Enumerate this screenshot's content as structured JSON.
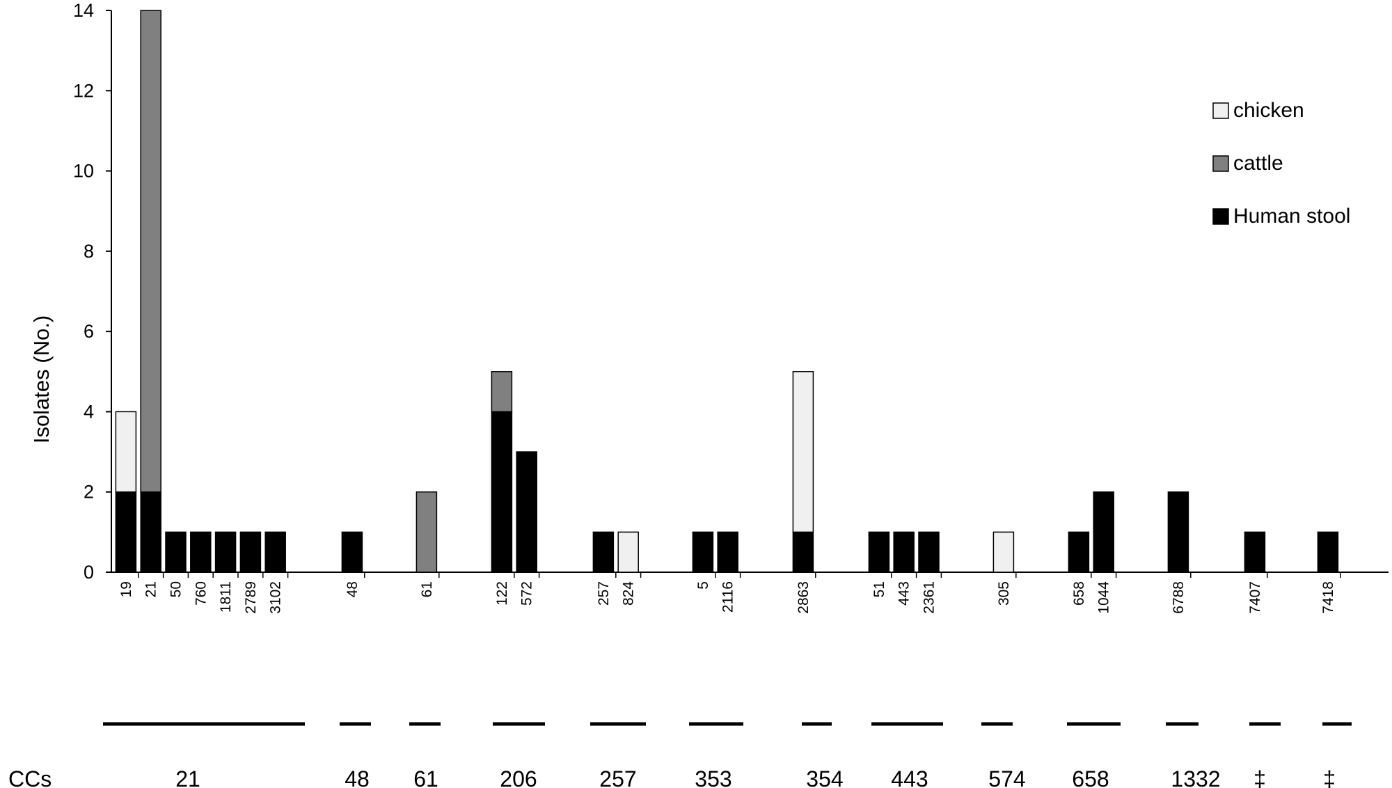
{
  "chart_data": {
    "type": "bar",
    "stacked": true,
    "title": "",
    "ylabel": "Isolates (No.)",
    "ylim": [
      0,
      14
    ],
    "yticks": [
      "0",
      "2",
      "4",
      "6",
      "8",
      "10",
      "12",
      "14"
    ],
    "categories": [
      "19",
      "21",
      "50",
      "760",
      "1811",
      "2789",
      "3102",
      "48",
      "61",
      "122",
      "572",
      "257",
      "824",
      "5",
      "2116",
      "2863",
      "51",
      "443",
      "2361",
      "305",
      "658",
      "1044",
      "6788",
      "7407",
      "7418"
    ],
    "series": [
      {
        "name": "Human stool",
        "color": "#000000",
        "values": [
          2,
          2,
          1,
          1,
          1,
          1,
          1,
          1,
          0,
          4,
          3,
          1,
          0,
          1,
          1,
          1,
          1,
          1,
          1,
          0,
          1,
          2,
          2,
          1,
          1
        ]
      },
      {
        "name": "cattle",
        "color": "#808080",
        "values": [
          0,
          12,
          0,
          0,
          0,
          0,
          0,
          0,
          2,
          1,
          0,
          0,
          0,
          0,
          0,
          0,
          0,
          0,
          0,
          0,
          0,
          0,
          0,
          0,
          0
        ]
      },
      {
        "name": "chicken",
        "color": "#f0f0f0",
        "values": [
          2,
          0,
          0,
          0,
          0,
          0,
          0,
          0,
          0,
          0,
          0,
          0,
          1,
          0,
          0,
          4,
          0,
          0,
          0,
          1,
          0,
          0,
          0,
          0,
          0
        ]
      }
    ],
    "legend": [
      "chicken",
      "cattle",
      "Human stool"
    ],
    "legend_position": "top-right",
    "group_label_title": "CCs",
    "groups": [
      {
        "label": "21",
        "members": 7
      },
      {
        "label": "48",
        "members": 1
      },
      {
        "label": "61",
        "members": 1
      },
      {
        "label": "206",
        "members": 2
      },
      {
        "label": "257",
        "members": 2
      },
      {
        "label": "353",
        "members": 2
      },
      {
        "label": "354",
        "members": 1
      },
      {
        "label": "443",
        "members": 3
      },
      {
        "label": "574",
        "members": 1
      },
      {
        "label": "658",
        "members": 2
      },
      {
        "label": "1332",
        "members": 1
      },
      {
        "label": "‡",
        "members": 1
      },
      {
        "label": "‡",
        "members": 1
      }
    ]
  }
}
